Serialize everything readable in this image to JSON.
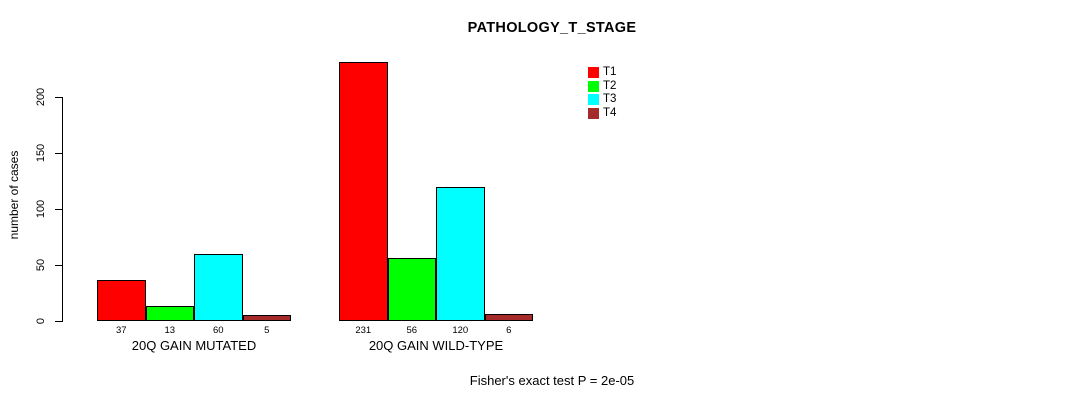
{
  "chart_data": {
    "type": "bar",
    "title": "PATHOLOGY_T_STAGE",
    "ylabel": "number of cases",
    "xlabel": "",
    "ylim": [
      0,
      200
    ],
    "yticks": [
      0,
      50,
      100,
      150,
      200
    ],
    "grid": false,
    "legend_position": "top-right",
    "bar_value_labels": true,
    "categories": [
      "20Q GAIN MUTATED",
      "20Q GAIN WILD-TYPE"
    ],
    "series": [
      {
        "name": "T1",
        "color": "#FF0000",
        "values": [
          37,
          231
        ]
      },
      {
        "name": "T2",
        "color": "#00FF00",
        "values": [
          13,
          56
        ]
      },
      {
        "name": "T3",
        "color": "#00FFFF",
        "values": [
          60,
          120
        ]
      },
      {
        "name": "T4",
        "color": "#A52A2A",
        "values": [
          5,
          6
        ]
      }
    ],
    "footnote": "Fisher's exact test P = 2e-05"
  },
  "colors": {
    "axis": "#000000",
    "text": "#000000",
    "background": "#FFFFFF"
  }
}
